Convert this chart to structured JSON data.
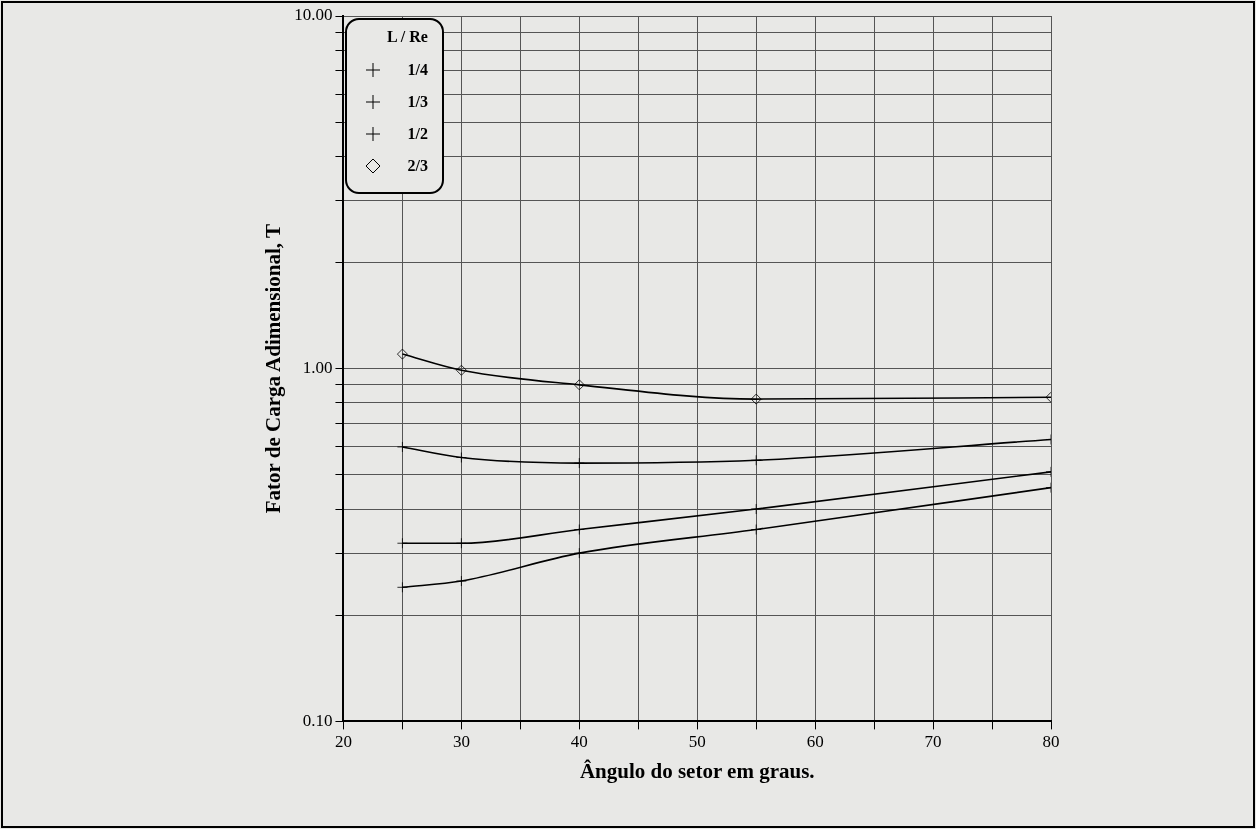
{
  "chart_data": {
    "type": "line",
    "xlabel": "Ângulo do setor em graus.",
    "ylabel": "Fator de Carga Adimensional, T",
    "legend_title": "L / Re",
    "legend": "top left",
    "log": "y",
    "grid": true,
    "line_style": "solid",
    "xlim": [
      20,
      80
    ],
    "xticks": [
      20,
      {
        "value": 25,
        "label": null
      },
      30,
      {
        "value": 35,
        "label": null
      },
      40,
      {
        "value": 45,
        "label": null
      },
      50,
      {
        "value": 55,
        "label": null
      },
      60,
      {
        "value": 65,
        "label": null
      },
      70,
      {
        "value": 75,
        "label": null
      },
      80
    ],
    "ylim": [
      0.1,
      10
    ],
    "yticks": [
      {
        "value": 0.1,
        "label": "0.10"
      },
      {
        "value": 0.2,
        "label": null
      },
      {
        "value": 0.3,
        "label": null
      },
      {
        "value": 0.4,
        "label": null
      },
      {
        "value": 0.5,
        "label": null
      },
      {
        "value": 0.6,
        "label": null
      },
      {
        "value": 0.7,
        "label": null
      },
      {
        "value": 0.8,
        "label": null
      },
      {
        "value": 0.9,
        "label": null
      },
      {
        "value": 1,
        "label": "1.00"
      },
      {
        "value": 2,
        "label": null
      },
      {
        "value": 3,
        "label": null
      },
      {
        "value": 4,
        "label": null
      },
      {
        "value": 5,
        "label": null
      },
      {
        "value": 6,
        "label": null
      },
      {
        "value": 7,
        "label": null
      },
      {
        "value": 8,
        "label": null
      },
      {
        "value": 9,
        "label": null
      },
      {
        "value": 10,
        "label": "10.00"
      }
    ],
    "x": [
      25,
      30,
      40,
      55,
      80
    ],
    "series": [
      {
        "name": "1/4",
        "color": "#000000",
        "marker": "cross",
        "values": [
          0.24,
          0.25,
          0.3,
          0.35,
          0.46
        ]
      },
      {
        "name": "1/3",
        "color": "#000000",
        "marker": "cross",
        "values": [
          0.32,
          0.32,
          0.35,
          0.4,
          0.51
        ]
      },
      {
        "name": "1/2",
        "color": "#000000",
        "marker": "cross",
        "values": [
          0.6,
          0.56,
          0.54,
          0.55,
          0.63
        ]
      },
      {
        "name": "2/3",
        "color": "#000000",
        "marker": "diamond",
        "values": [
          1.1,
          0.99,
          0.9,
          0.82,
          0.83
        ]
      }
    ]
  }
}
